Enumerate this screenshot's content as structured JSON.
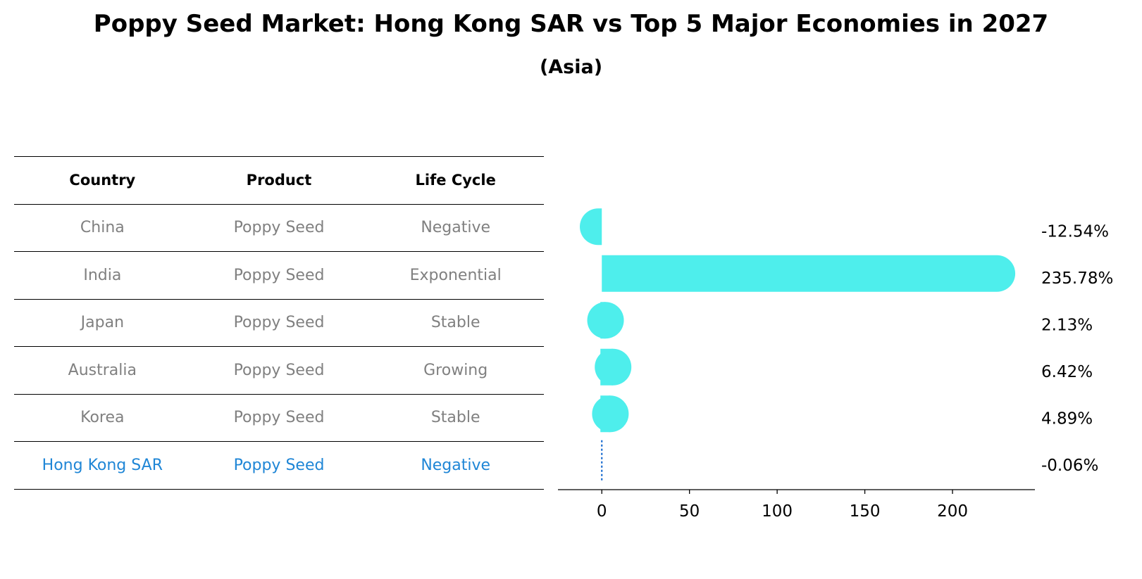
{
  "chart_data": {
    "type": "bar",
    "title": "Poppy Seed Market: Hong Kong SAR vs Top 5 Major Economies in 2027",
    "subtitle": "(Asia)",
    "table": {
      "headers": [
        "Country",
        "Product",
        "Life Cycle"
      ],
      "rows": [
        [
          "China",
          "Poppy Seed",
          "Negative"
        ],
        [
          "India",
          "Poppy Seed",
          "Exponential"
        ],
        [
          "Japan",
          "Poppy Seed",
          "Stable"
        ],
        [
          "Australia",
          "Poppy Seed",
          "Growing"
        ],
        [
          "Korea",
          "Poppy Seed",
          "Stable"
        ],
        [
          "Hong Kong SAR",
          "Poppy Seed",
          "Negative"
        ]
      ],
      "highlight_row": 5
    },
    "categories": [
      "China",
      "India",
      "Japan",
      "Australia",
      "Korea",
      "Hong Kong SAR"
    ],
    "values": [
      -12.54,
      235.78,
      2.13,
      6.42,
      4.89,
      -0.06
    ],
    "value_labels": [
      "-12.54%",
      "235.78%",
      "2.13%",
      "6.42%",
      "4.89%",
      "-0.06%"
    ],
    "xlim": [
      -25,
      247
    ],
    "xticks": [
      0,
      50,
      100,
      150,
      200
    ],
    "colors": {
      "bar": "#4eeeec",
      "highlight": "#1f6fd0",
      "highlight_text": "#1f86d6"
    }
  }
}
